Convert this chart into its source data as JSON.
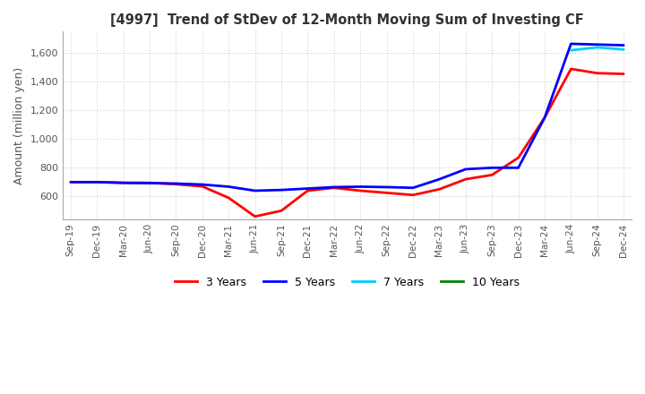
{
  "title": "[4997]  Trend of StDev of 12-Month Moving Sum of Investing CF",
  "ylabel": "Amount (million yen)",
  "background_color": "#ffffff",
  "grid_color": "#d0d0d0",
  "legend_labels": [
    "3 Years",
    "5 Years",
    "7 Years",
    "10 Years"
  ],
  "legend_colors": [
    "#ff0000",
    "#0000ff",
    "#00ccff",
    "#008000"
  ],
  "x_labels": [
    "Sep-19",
    "Dec-19",
    "Mar-20",
    "Jun-20",
    "Sep-20",
    "Dec-20",
    "Mar-21",
    "Jun-21",
    "Sep-21",
    "Dec-21",
    "Mar-22",
    "Jun-22",
    "Sep-22",
    "Dec-22",
    "Mar-23",
    "Jun-23",
    "Sep-23",
    "Dec-23",
    "Mar-24",
    "Jun-24",
    "Sep-24",
    "Dec-24"
  ],
  "ylim": [
    440,
    1750
  ],
  "yticks": [
    600,
    800,
    1000,
    1200,
    1400,
    1600
  ],
  "series": {
    "3yr": [
      700,
      700,
      695,
      695,
      685,
      670,
      590,
      460,
      500,
      640,
      660,
      640,
      625,
      610,
      650,
      720,
      750,
      870,
      1150,
      1490,
      1460,
      1455
    ],
    "5yr": [
      700,
      700,
      695,
      693,
      690,
      683,
      668,
      640,
      645,
      655,
      665,
      668,
      665,
      660,
      720,
      790,
      800,
      800,
      1150,
      1665,
      1660,
      1655
    ],
    "7yr": [
      null,
      null,
      null,
      null,
      null,
      null,
      null,
      null,
      null,
      null,
      null,
      null,
      null,
      null,
      null,
      null,
      null,
      null,
      null,
      1620,
      1640,
      1625
    ],
    "10yr": [
      null,
      null,
      null,
      null,
      null,
      null,
      null,
      null,
      null,
      null,
      null,
      null,
      null,
      null,
      null,
      null,
      null,
      null,
      null,
      null,
      null,
      null
    ]
  }
}
